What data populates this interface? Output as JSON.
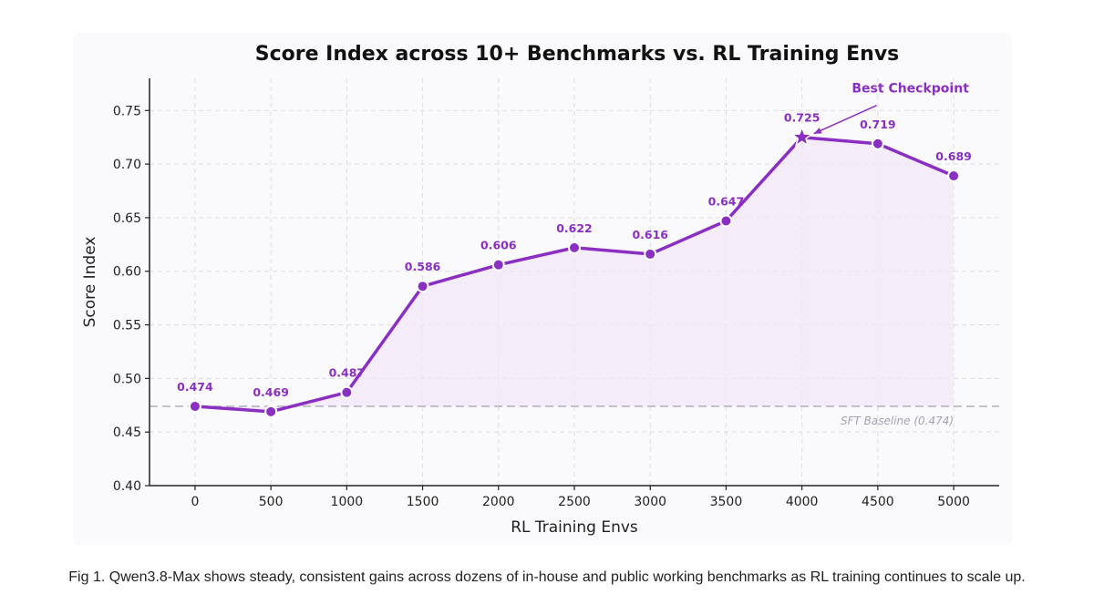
{
  "chart_data": {
    "type": "line",
    "title": "Score Index across 10+ Benchmarks vs. RL Training Envs",
    "xlabel": "RL Training Envs",
    "ylabel": "Score Index",
    "x": [
      0,
      500,
      1000,
      1500,
      2000,
      2500,
      3000,
      3500,
      4000,
      4500,
      5000
    ],
    "x_tick_labels": [
      "0",
      "500",
      "1000",
      "1500",
      "2000",
      "2500",
      "3000",
      "3500",
      "4000",
      "4500",
      "5000"
    ],
    "y_tick_labels": [
      "0.40",
      "0.45",
      "0.50",
      "0.55",
      "0.60",
      "0.65",
      "0.70",
      "0.75"
    ],
    "xlim": [
      -300,
      5300
    ],
    "ylim": [
      0.4,
      0.78
    ],
    "grid": true,
    "area_fill": true,
    "series": [
      {
        "values": [
          0.474,
          0.469,
          0.487,
          0.586,
          0.606,
          0.622,
          0.616,
          0.647,
          0.725,
          0.719,
          0.689
        ],
        "data_labels": [
          "0.474",
          "0.469",
          "0.487",
          "0.586",
          "0.606",
          "0.622",
          "0.616",
          "0.647",
          "0.725",
          "0.719",
          "0.689"
        ],
        "color": "#8a2fc2"
      }
    ],
    "baseline": {
      "value": 0.474,
      "label": "SFT Baseline (0.474)",
      "color": "#a9a9b8"
    },
    "annotation": {
      "text": "Best Checkpoint",
      "x": 4000,
      "y": 0.725,
      "marker": "star"
    }
  },
  "caption": "Fig 1. Qwen3.8-Max shows steady, consistent gains across dozens of in-house and public working benchmarks as RL training continues to scale up.",
  "colors": {
    "accent": "#8a2fc2",
    "fill": "#f1e7f8",
    "grid": "#dddde4",
    "axis": "#222222"
  }
}
